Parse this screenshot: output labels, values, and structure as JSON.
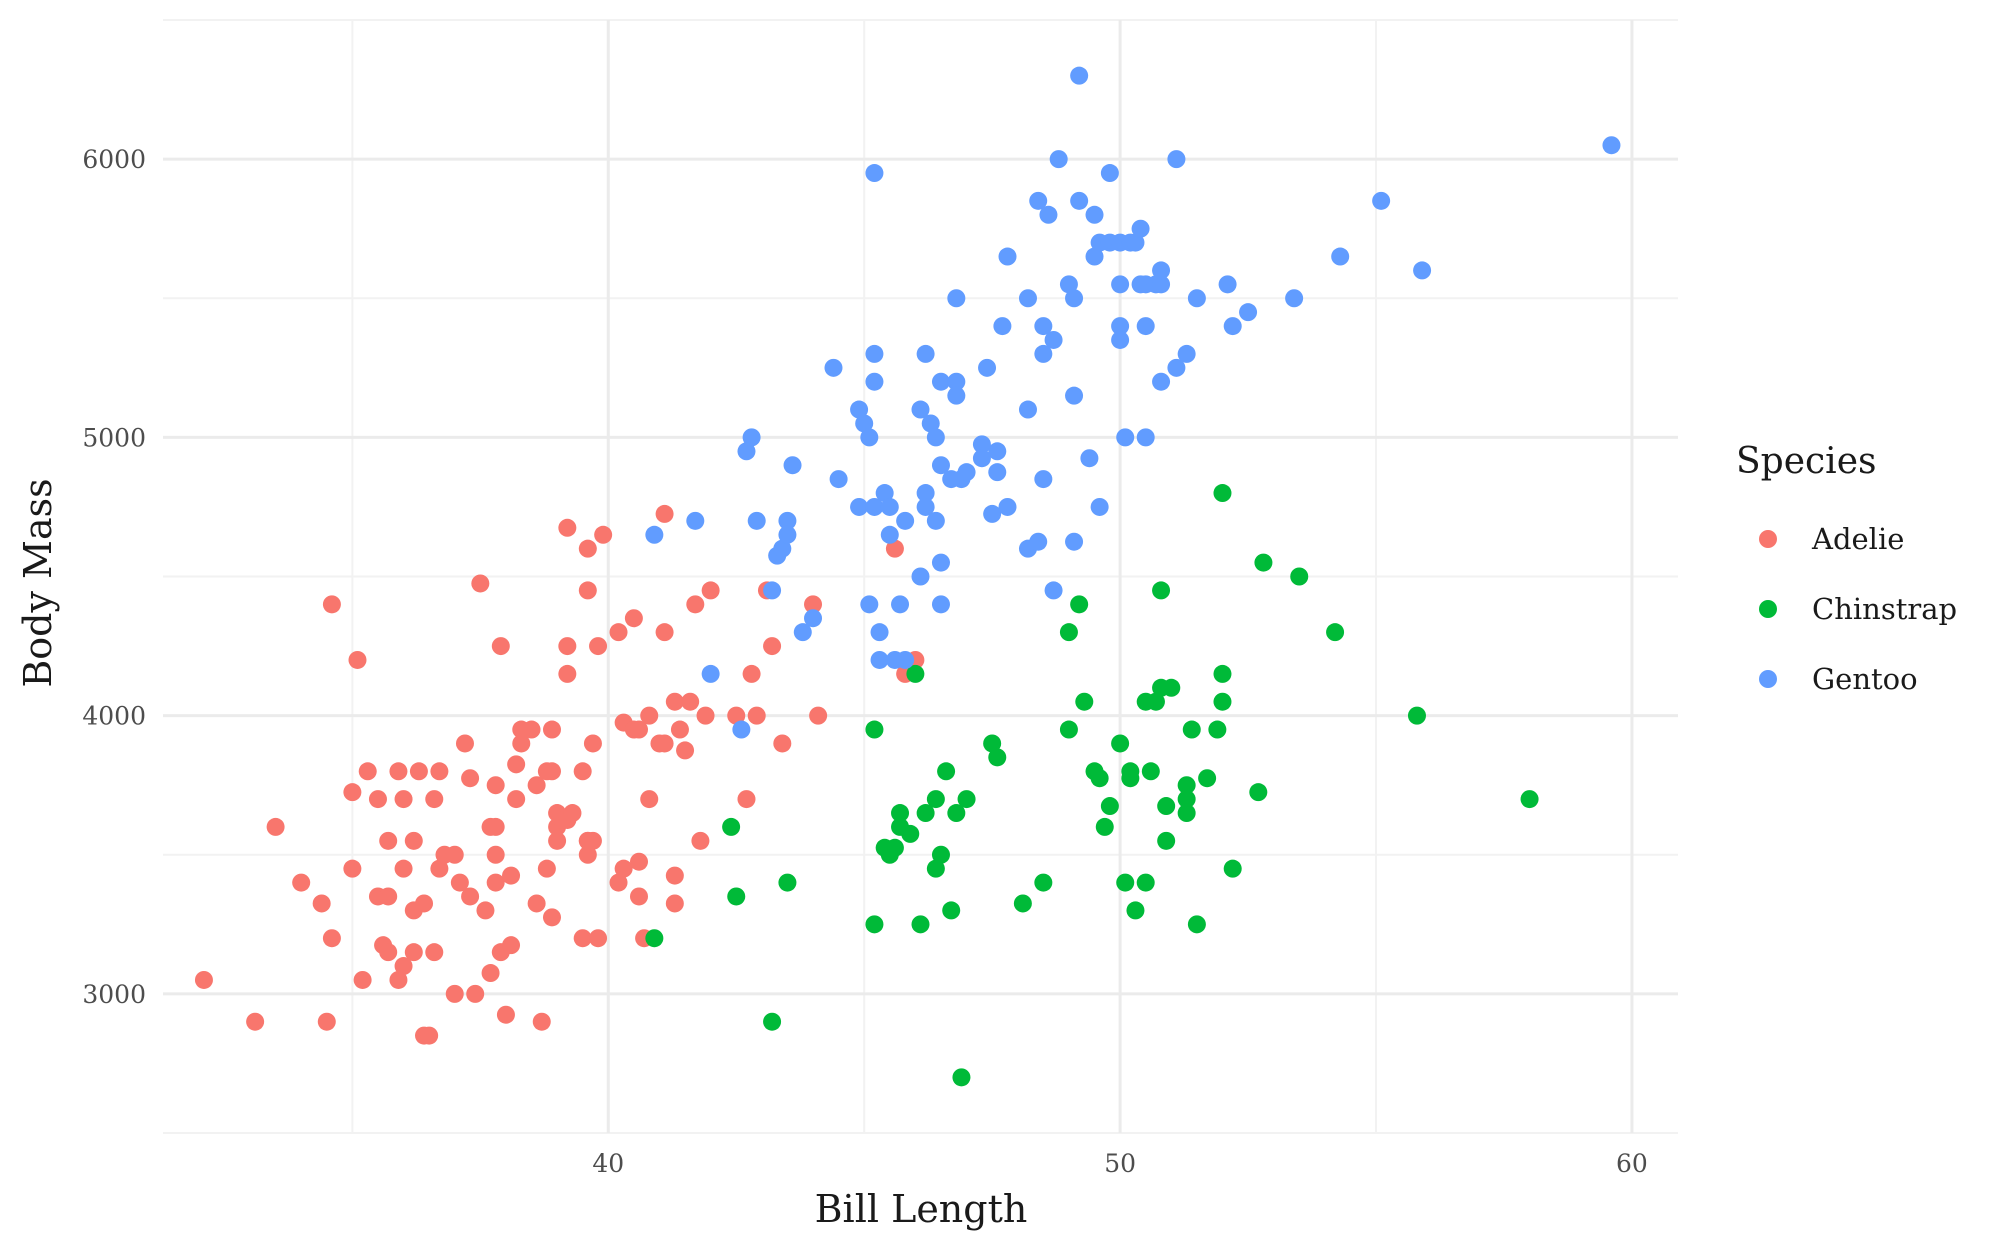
{
  "chart_data": {
    "type": "scatter",
    "title": "",
    "xlabel": "Bill Length",
    "ylabel": "Body Mass",
    "xlim": [
      31.3,
      60.9
    ],
    "ylim": [
      2500,
      6500
    ],
    "x_ticks": [
      40,
      50,
      60
    ],
    "y_ticks": [
      3000,
      4000,
      5000,
      6000
    ],
    "x_tick_labels": [
      "40",
      "50",
      "60"
    ],
    "y_tick_labels": [
      "3000",
      "4000",
      "5000",
      "6000"
    ],
    "grid": true,
    "legend": {
      "title": "Species",
      "position": "right"
    },
    "series": [
      {
        "name": "Adelie",
        "color": "#F8766D",
        "points": [
          [
            32.1,
            3050
          ],
          [
            33.1,
            2900
          ],
          [
            33.5,
            3600
          ],
          [
            34.0,
            3400
          ],
          [
            34.4,
            3325
          ],
          [
            34.5,
            2900
          ],
          [
            34.6,
            3200
          ],
          [
            34.6,
            4400
          ],
          [
            35.0,
            3450
          ],
          [
            35.0,
            3725
          ],
          [
            35.1,
            4200
          ],
          [
            35.2,
            3050
          ],
          [
            35.3,
            3800
          ],
          [
            35.5,
            3700
          ],
          [
            35.5,
            3350
          ],
          [
            35.6,
            3175
          ],
          [
            35.7,
            3150
          ],
          [
            35.7,
            3550
          ],
          [
            35.7,
            3350
          ],
          [
            35.9,
            3800
          ],
          [
            35.9,
            3050
          ],
          [
            36.0,
            3100
          ],
          [
            36.0,
            3450
          ],
          [
            36.0,
            3700
          ],
          [
            36.2,
            3300
          ],
          [
            36.2,
            3150
          ],
          [
            36.2,
            3550
          ],
          [
            36.3,
            3800
          ],
          [
            36.4,
            3325
          ],
          [
            36.4,
            2850
          ],
          [
            36.5,
            2850
          ],
          [
            36.6,
            3150
          ],
          [
            36.6,
            3700
          ],
          [
            36.7,
            3800
          ],
          [
            36.7,
            3450
          ],
          [
            36.8,
            3500
          ],
          [
            37.0,
            3500
          ],
          [
            37.0,
            3000
          ],
          [
            37.1,
            3400
          ],
          [
            37.2,
            3900
          ],
          [
            37.3,
            3775
          ],
          [
            37.3,
            3350
          ],
          [
            37.4,
            3000
          ],
          [
            37.5,
            4475
          ],
          [
            37.6,
            3300
          ],
          [
            37.7,
            3600
          ],
          [
            37.7,
            3075
          ],
          [
            37.8,
            3500
          ],
          [
            37.8,
            3750
          ],
          [
            37.8,
            3400
          ],
          [
            37.8,
            3600
          ],
          [
            37.9,
            3150
          ],
          [
            37.9,
            4250
          ],
          [
            38.0,
            2925
          ],
          [
            38.1,
            3425
          ],
          [
            38.1,
            3175
          ],
          [
            38.2,
            3825
          ],
          [
            38.2,
            3700
          ],
          [
            38.3,
            3950
          ],
          [
            38.3,
            3900
          ],
          [
            38.5,
            3950
          ],
          [
            38.6,
            3325
          ],
          [
            38.6,
            3750
          ],
          [
            38.7,
            2900
          ],
          [
            38.8,
            3800
          ],
          [
            38.8,
            3450
          ],
          [
            38.9,
            3275
          ],
          [
            38.9,
            3800
          ],
          [
            38.9,
            3950
          ],
          [
            39.0,
            3550
          ],
          [
            39.0,
            3650
          ],
          [
            39.0,
            3600
          ],
          [
            39.1,
            3625
          ],
          [
            39.2,
            3625
          ],
          [
            39.2,
            4675
          ],
          [
            39.2,
            4250
          ],
          [
            39.2,
            4150
          ],
          [
            39.3,
            3650
          ],
          [
            39.5,
            3800
          ],
          [
            39.5,
            3200
          ],
          [
            39.6,
            3550
          ],
          [
            39.6,
            3500
          ],
          [
            39.6,
            3550
          ],
          [
            39.6,
            4600
          ],
          [
            39.6,
            4450
          ],
          [
            39.7,
            3900
          ],
          [
            39.7,
            3550
          ],
          [
            39.8,
            3200
          ],
          [
            39.8,
            4250
          ],
          [
            39.9,
            4650
          ],
          [
            40.2,
            4300
          ],
          [
            40.2,
            3400
          ],
          [
            40.3,
            3450
          ],
          [
            40.3,
            3975
          ],
          [
            40.5,
            3950
          ],
          [
            40.5,
            4350
          ],
          [
            40.6,
            3475
          ],
          [
            40.6,
            3350
          ],
          [
            40.6,
            3950
          ],
          [
            40.7,
            3200
          ],
          [
            40.8,
            4000
          ],
          [
            40.8,
            3700
          ],
          [
            41.0,
            3900
          ],
          [
            41.1,
            4300
          ],
          [
            41.1,
            3900
          ],
          [
            41.1,
            4725
          ],
          [
            41.3,
            3325
          ],
          [
            41.3,
            3425
          ],
          [
            41.3,
            4050
          ],
          [
            41.4,
            3950
          ],
          [
            41.5,
            3875
          ],
          [
            41.6,
            4050
          ],
          [
            41.7,
            4400
          ],
          [
            41.8,
            3550
          ],
          [
            41.9,
            4000
          ],
          [
            42.0,
            4450
          ],
          [
            42.5,
            4000
          ],
          [
            42.7,
            3700
          ],
          [
            42.8,
            4150
          ],
          [
            42.9,
            4000
          ],
          [
            43.1,
            4450
          ],
          [
            43.2,
            4250
          ],
          [
            43.4,
            3900
          ],
          [
            44.0,
            4400
          ],
          [
            44.1,
            4000
          ],
          [
            45.6,
            4600
          ],
          [
            45.8,
            4150
          ],
          [
            46.0,
            4200
          ]
        ]
      },
      {
        "name": "Chinstrap",
        "color": "#00BA38",
        "points": [
          [
            40.9,
            3200
          ],
          [
            42.4,
            3600
          ],
          [
            42.5,
            3350
          ],
          [
            43.2,
            2900
          ],
          [
            43.5,
            3400
          ],
          [
            45.2,
            3250
          ],
          [
            45.2,
            3950
          ],
          [
            45.4,
            3525
          ],
          [
            45.5,
            3500
          ],
          [
            45.6,
            3525
          ],
          [
            45.7,
            3650
          ],
          [
            45.7,
            3600
          ],
          [
            45.9,
            3575
          ],
          [
            46.0,
            4150
          ],
          [
            46.1,
            3250
          ],
          [
            46.2,
            3650
          ],
          [
            46.4,
            3700
          ],
          [
            46.4,
            3450
          ],
          [
            46.5,
            3500
          ],
          [
            46.6,
            3800
          ],
          [
            46.7,
            3300
          ],
          [
            46.8,
            3650
          ],
          [
            46.9,
            2700
          ],
          [
            47.0,
            3700
          ],
          [
            47.5,
            3900
          ],
          [
            47.6,
            3850
          ],
          [
            48.1,
            3325
          ],
          [
            48.5,
            3400
          ],
          [
            49.0,
            4300
          ],
          [
            49.0,
            3950
          ],
          [
            49.2,
            4400
          ],
          [
            49.3,
            4050
          ],
          [
            49.5,
            3800
          ],
          [
            49.6,
            3775
          ],
          [
            49.7,
            3600
          ],
          [
            49.8,
            3675
          ],
          [
            50.0,
            3900
          ],
          [
            50.1,
            3400
          ],
          [
            50.2,
            3800
          ],
          [
            50.2,
            3775
          ],
          [
            50.3,
            3300
          ],
          [
            50.5,
            4050
          ],
          [
            50.5,
            3400
          ],
          [
            50.6,
            3800
          ],
          [
            50.7,
            4050
          ],
          [
            50.8,
            4100
          ],
          [
            50.8,
            4450
          ],
          [
            50.9,
            3675
          ],
          [
            50.9,
            3550
          ],
          [
            51.0,
            4100
          ],
          [
            51.3,
            3650
          ],
          [
            51.3,
            3700
          ],
          [
            51.3,
            3750
          ],
          [
            51.4,
            3950
          ],
          [
            51.5,
            3250
          ],
          [
            51.7,
            3775
          ],
          [
            51.9,
            3950
          ],
          [
            52.0,
            4050
          ],
          [
            52.0,
            4150
          ],
          [
            52.0,
            4800
          ],
          [
            52.2,
            3450
          ],
          [
            52.7,
            3725
          ],
          [
            52.8,
            4550
          ],
          [
            53.5,
            4500
          ],
          [
            54.2,
            4300
          ],
          [
            55.8,
            4000
          ],
          [
            58.0,
            3700
          ]
        ]
      },
      {
        "name": "Gentoo",
        "color": "#619CFF",
        "points": [
          [
            40.9,
            4650
          ],
          [
            41.7,
            4700
          ],
          [
            42.0,
            4150
          ],
          [
            42.6,
            3950
          ],
          [
            42.7,
            4950
          ],
          [
            42.8,
            5000
          ],
          [
            42.9,
            4700
          ],
          [
            43.2,
            4450
          ],
          [
            43.3,
            4575
          ],
          [
            43.4,
            4600
          ],
          [
            43.5,
            4700
          ],
          [
            43.5,
            4650
          ],
          [
            43.6,
            4900
          ],
          [
            43.8,
            4300
          ],
          [
            44.0,
            4350
          ],
          [
            44.4,
            5250
          ],
          [
            44.5,
            4850
          ],
          [
            44.9,
            5100
          ],
          [
            44.9,
            4750
          ],
          [
            45.0,
            5050
          ],
          [
            45.1,
            4400
          ],
          [
            45.1,
            5000
          ],
          [
            45.2,
            5950
          ],
          [
            45.2,
            5300
          ],
          [
            45.2,
            4750
          ],
          [
            45.2,
            5200
          ],
          [
            45.3,
            4300
          ],
          [
            45.3,
            4200
          ],
          [
            45.4,
            4800
          ],
          [
            45.5,
            4750
          ],
          [
            45.5,
            4650
          ],
          [
            45.6,
            4200
          ],
          [
            45.7,
            4400
          ],
          [
            45.8,
            4700
          ],
          [
            45.8,
            4200
          ],
          [
            46.1,
            5100
          ],
          [
            46.1,
            4500
          ],
          [
            46.2,
            4800
          ],
          [
            46.2,
            4750
          ],
          [
            46.2,
            5300
          ],
          [
            46.3,
            5050
          ],
          [
            46.4,
            5000
          ],
          [
            46.4,
            4700
          ],
          [
            46.5,
            4900
          ],
          [
            46.5,
            4550
          ],
          [
            46.5,
            4400
          ],
          [
            46.5,
            5200
          ],
          [
            46.7,
            4850
          ],
          [
            46.8,
            5200
          ],
          [
            46.8,
            5500
          ],
          [
            46.8,
            5150
          ],
          [
            46.9,
            4850
          ],
          [
            47.0,
            4875
          ],
          [
            47.3,
            4975
          ],
          [
            47.3,
            4925
          ],
          [
            47.4,
            5250
          ],
          [
            47.5,
            4725
          ],
          [
            47.6,
            4950
          ],
          [
            47.6,
            4875
          ],
          [
            47.7,
            5400
          ],
          [
            47.8,
            4750
          ],
          [
            47.8,
            5650
          ],
          [
            48.2,
            5500
          ],
          [
            48.2,
            4600
          ],
          [
            48.2,
            5100
          ],
          [
            48.4,
            5850
          ],
          [
            48.4,
            4625
          ],
          [
            48.5,
            5400
          ],
          [
            48.5,
            5300
          ],
          [
            48.5,
            4850
          ],
          [
            48.6,
            5800
          ],
          [
            48.7,
            5350
          ],
          [
            48.7,
            4450
          ],
          [
            48.8,
            6000
          ],
          [
            49.0,
            5550
          ],
          [
            49.1,
            5500
          ],
          [
            49.1,
            5150
          ],
          [
            49.1,
            4625
          ],
          [
            49.2,
            6300
          ],
          [
            49.2,
            5850
          ],
          [
            49.4,
            4925
          ],
          [
            49.5,
            5800
          ],
          [
            49.5,
            5650
          ],
          [
            49.6,
            5700
          ],
          [
            49.6,
            4750
          ],
          [
            49.8,
            5950
          ],
          [
            49.8,
            5700
          ],
          [
            50.0,
            5700
          ],
          [
            50.0,
            5550
          ],
          [
            50.0,
            5400
          ],
          [
            50.0,
            5350
          ],
          [
            50.1,
            5000
          ],
          [
            50.2,
            5700
          ],
          [
            50.3,
            5700
          ],
          [
            50.4,
            5550
          ],
          [
            50.4,
            5750
          ],
          [
            50.5,
            5550
          ],
          [
            50.5,
            5400
          ],
          [
            50.5,
            5000
          ],
          [
            50.7,
            5550
          ],
          [
            50.8,
            5550
          ],
          [
            50.8,
            5600
          ],
          [
            50.8,
            5200
          ],
          [
            51.1,
            6000
          ],
          [
            51.1,
            5250
          ],
          [
            51.3,
            5300
          ],
          [
            51.5,
            5500
          ],
          [
            52.1,
            5550
          ],
          [
            52.2,
            5400
          ],
          [
            52.5,
            5450
          ],
          [
            53.4,
            5500
          ],
          [
            54.3,
            5650
          ],
          [
            55.1,
            5850
          ],
          [
            55.9,
            5600
          ],
          [
            59.6,
            6050
          ]
        ]
      }
    ]
  }
}
